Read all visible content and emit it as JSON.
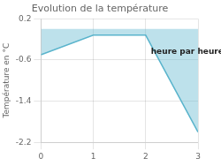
{
  "chart_data": {
    "type": "area",
    "title": "Evolution de la température",
    "ylabel": "Température en °C",
    "annotations": [
      {
        "text": "heure par heure",
        "x": 2.1,
        "y": -0.45
      }
    ],
    "x": [
      0,
      1,
      2,
      3
    ],
    "values": [
      -0.5,
      -0.12,
      -0.12,
      -2.0
    ],
    "color": "#5ab4cc",
    "xlim": [
      0,
      3
    ],
    "ylim": [
      -2.2,
      0.2
    ],
    "xticks": [
      0,
      1,
      2,
      3
    ],
    "yticks": [
      0.2,
      -0.6,
      -1.4,
      -2.2
    ],
    "grid": true
  }
}
